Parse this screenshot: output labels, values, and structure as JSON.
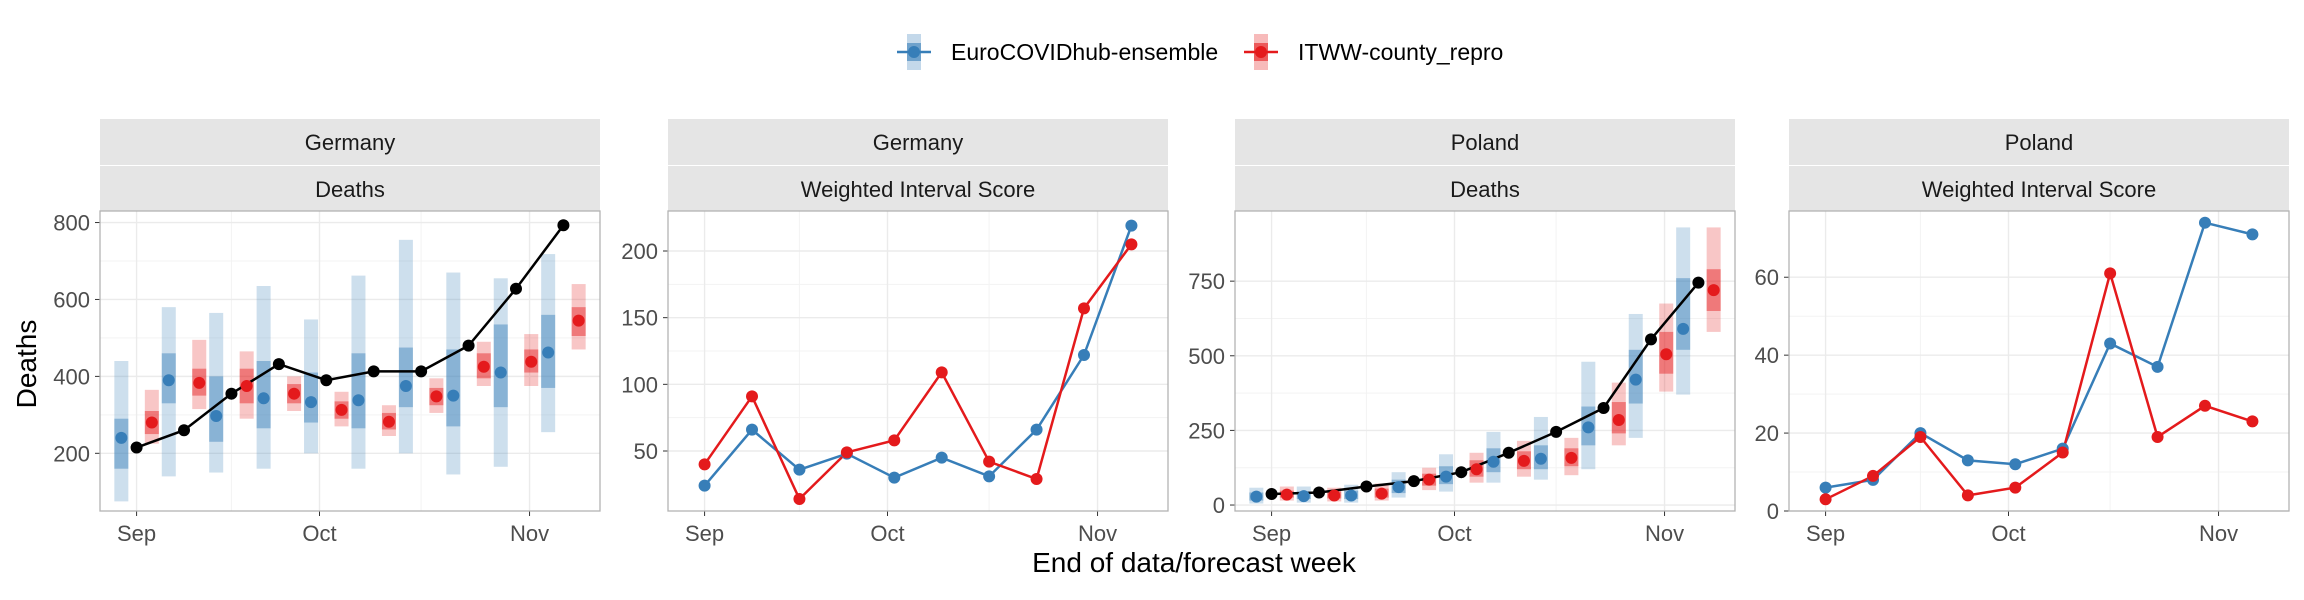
{
  "legend": {
    "placement": "top-center",
    "items": [
      {
        "label": "EuroCOVIDhub-ensemble",
        "color": "#377eb8"
      },
      {
        "label": "ITWW-county_repro",
        "color": "#e41a1c"
      }
    ]
  },
  "axis": {
    "xlabel": "End of data/forecast week",
    "ylabel": "Deaths",
    "x_ticks": [
      {
        "label": "Sep",
        "date": "2021-09-04"
      },
      {
        "label": "Oct",
        "date": "2021-10-01"
      },
      {
        "label": "Nov",
        "date": "2021-11-01"
      }
    ]
  },
  "colors": {
    "observed": "#000000",
    "ensemble": "#377eb8",
    "itww": "#e41a1c",
    "strip": "#e5e5e5",
    "grid": "#ebebeb"
  },
  "chart_data": [
    {
      "type": "line",
      "strip_top": "Germany",
      "strip_bottom": "Deaths",
      "ylim": [
        50,
        830
      ],
      "yticks": [
        200,
        400,
        600,
        800
      ],
      "x_dates": [
        "2021-09-04",
        "2021-09-11",
        "2021-09-18",
        "2021-09-25",
        "2021-10-02",
        "2021-10-09",
        "2021-10-16",
        "2021-10-23",
        "2021-10-30",
        "2021-11-06"
      ],
      "observed": [
        215,
        260,
        355,
        432,
        390,
        413,
        413,
        480,
        628,
        793
      ],
      "series": [
        {
          "name": "EuroCOVIDhub-ensemble",
          "median": [
            240,
            390,
            297,
            343,
            333,
            338,
            375,
            350,
            410,
            462
          ],
          "inner": [
            [
              160,
              290
            ],
            [
              330,
              460
            ],
            [
              230,
              400
            ],
            [
              265,
              440
            ],
            [
              280,
              410
            ],
            [
              265,
              460
            ],
            [
              320,
              475
            ],
            [
              270,
              470
            ],
            [
              320,
              535
            ],
            [
              370,
              560
            ]
          ],
          "outer": [
            [
              75,
              440
            ],
            [
              140,
              580
            ],
            [
              150,
              565
            ],
            [
              160,
              635
            ],
            [
              200,
              548
            ],
            [
              160,
              662
            ],
            [
              200,
              755
            ],
            [
              145,
              670
            ],
            [
              165,
              655
            ],
            [
              255,
              718
            ]
          ]
        },
        {
          "name": "ITWW-county_repro",
          "median": [
            280,
            383,
            375,
            355,
            313,
            282,
            348,
            425,
            438,
            545
          ],
          "inner": [
            [
              250,
              310
            ],
            [
              350,
              420
            ],
            [
              330,
              420
            ],
            [
              330,
              380
            ],
            [
              290,
              335
            ],
            [
              262,
              305
            ],
            [
              325,
              370
            ],
            [
              395,
              460
            ],
            [
              410,
              470
            ],
            [
              505,
              580
            ]
          ],
          "outer": [
            [
              225,
              365
            ],
            [
              315,
              495
            ],
            [
              290,
              465
            ],
            [
              310,
              400
            ],
            [
              270,
              360
            ],
            [
              245,
              325
            ],
            [
              305,
              395
            ],
            [
              375,
              490
            ],
            [
              375,
              510
            ],
            [
              470,
              640
            ]
          ]
        }
      ]
    },
    {
      "type": "line",
      "strip_top": "Germany",
      "strip_bottom": "Weighted Interval Score",
      "ylim": [
        5,
        230
      ],
      "yticks": [
        50,
        100,
        150,
        200
      ],
      "x_dates": [
        "2021-09-04",
        "2021-09-11",
        "2021-09-18",
        "2021-09-25",
        "2021-10-02",
        "2021-10-09",
        "2021-10-16",
        "2021-10-23",
        "2021-10-30",
        "2021-11-06"
      ],
      "series": [
        {
          "name": "EuroCOVIDhub-ensemble",
          "values": [
            24,
            66,
            36,
            48,
            30,
            45,
            31,
            66,
            122,
            219
          ]
        },
        {
          "name": "ITWW-county_repro",
          "values": [
            40,
            91,
            14,
            49,
            58,
            109,
            42,
            29,
            157,
            205
          ]
        }
      ]
    },
    {
      "type": "line",
      "strip_top": "Poland",
      "strip_bottom": "Deaths",
      "ylim": [
        -20,
        985
      ],
      "yticks": [
        0,
        250,
        500,
        750
      ],
      "x_dates": [
        "2021-09-04",
        "2021-09-11",
        "2021-09-18",
        "2021-09-25",
        "2021-10-02",
        "2021-10-09",
        "2021-10-16",
        "2021-10-23",
        "2021-10-30",
        "2021-11-06"
      ],
      "observed": [
        37,
        42,
        62,
        80,
        110,
        175,
        245,
        325,
        555,
        745
      ],
      "series": [
        {
          "name": "EuroCOVIDhub-ensemble",
          "median": [
            28,
            30,
            32,
            60,
            95,
            145,
            155,
            260,
            420,
            590
          ],
          "inner": [
            [
              15,
              42
            ],
            [
              20,
              45
            ],
            [
              20,
              48
            ],
            [
              40,
              85
            ],
            [
              70,
              130
            ],
            [
              110,
              190
            ],
            [
              120,
              200
            ],
            [
              200,
              330
            ],
            [
              340,
              520
            ],
            [
              520,
              760
            ]
          ],
          "outer": [
            [
              5,
              58
            ],
            [
              8,
              62
            ],
            [
              8,
              68
            ],
            [
              25,
              110
            ],
            [
              45,
              170
            ],
            [
              75,
              245
            ],
            [
              85,
              295
            ],
            [
              120,
              480
            ],
            [
              225,
              640
            ],
            [
              370,
              930
            ]
          ]
        },
        {
          "name": "ITWW-county_repro",
          "median": [
            35,
            32,
            38,
            85,
            120,
            148,
            158,
            285,
            505,
            720
          ],
          "inner": [
            [
              25,
              48
            ],
            [
              22,
              45
            ],
            [
              25,
              55
            ],
            [
              65,
              105
            ],
            [
              95,
              150
            ],
            [
              120,
              180
            ],
            [
              130,
              190
            ],
            [
              240,
              345
            ],
            [
              440,
              580
            ],
            [
              650,
              790
            ]
          ],
          "outer": [
            [
              15,
              62
            ],
            [
              12,
              58
            ],
            [
              15,
              72
            ],
            [
              50,
              125
            ],
            [
              75,
              175
            ],
            [
              95,
              215
            ],
            [
              100,
              225
            ],
            [
              200,
              410
            ],
            [
              380,
              675
            ],
            [
              580,
              930
            ]
          ]
        }
      ]
    },
    {
      "type": "line",
      "strip_top": "Poland",
      "strip_bottom": "Weighted Interval Score",
      "ylim": [
        0,
        77
      ],
      "yticks": [
        0,
        20,
        40,
        60
      ],
      "x_dates": [
        "2021-09-04",
        "2021-09-11",
        "2021-09-18",
        "2021-09-25",
        "2021-10-02",
        "2021-10-09",
        "2021-10-16",
        "2021-10-23",
        "2021-10-30",
        "2021-11-06"
      ],
      "series": [
        {
          "name": "EuroCOVIDhub-ensemble",
          "values": [
            6,
            8,
            20,
            13,
            12,
            16,
            43,
            37,
            74,
            71
          ]
        },
        {
          "name": "ITWW-county_repro",
          "values": [
            3,
            9,
            19,
            4,
            6,
            15,
            61,
            19,
            27,
            23
          ]
        }
      ]
    }
  ]
}
